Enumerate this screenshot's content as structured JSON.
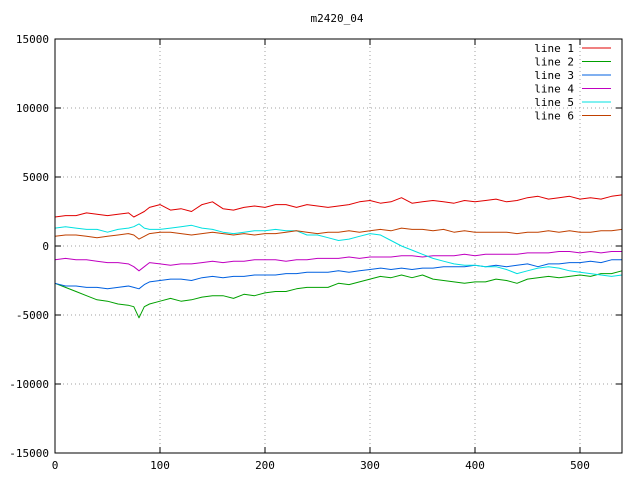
{
  "chart_data": {
    "type": "line",
    "title": "m2420_04",
    "xlabel": "",
    "ylabel": "",
    "xlim": [
      0,
      540
    ],
    "ylim": [
      -15000,
      15000
    ],
    "x_ticks": [
      0,
      100,
      200,
      300,
      400,
      500
    ],
    "y_ticks": [
      -15000,
      -10000,
      -5000,
      0,
      5000,
      10000,
      15000
    ],
    "grid": true,
    "legend_position": "top-right",
    "x": [
      0,
      10,
      20,
      30,
      40,
      50,
      60,
      70,
      75,
      80,
      85,
      90,
      100,
      110,
      120,
      130,
      140,
      150,
      160,
      170,
      180,
      190,
      200,
      210,
      220,
      230,
      240,
      250,
      260,
      270,
      280,
      290,
      300,
      310,
      320,
      330,
      340,
      350,
      360,
      370,
      380,
      390,
      400,
      410,
      420,
      430,
      440,
      450,
      460,
      470,
      480,
      490,
      500,
      510,
      520,
      530,
      540
    ],
    "series": [
      {
        "name": "line 1",
        "color": "#e00000",
        "values": [
          2100,
          2200,
          2200,
          2400,
          2300,
          2200,
          2300,
          2400,
          2100,
          2300,
          2500,
          2800,
          3000,
          2600,
          2700,
          2500,
          3000,
          3200,
          2700,
          2600,
          2800,
          2900,
          2800,
          3000,
          3000,
          2800,
          3000,
          2900,
          2800,
          2900,
          3000,
          3200,
          3300,
          3100,
          3200,
          3500,
          3100,
          3200,
          3300,
          3200,
          3100,
          3300,
          3200,
          3300,
          3400,
          3200,
          3300,
          3500,
          3600,
          3400,
          3500,
          3600,
          3400,
          3500,
          3400,
          3600,
          3700
        ]
      },
      {
        "name": "line 2",
        "color": "#00a000",
        "values": [
          -2700,
          -3000,
          -3300,
          -3600,
          -3900,
          -4000,
          -4200,
          -4300,
          -4400,
          -5200,
          -4400,
          -4200,
          -4000,
          -3800,
          -4000,
          -3900,
          -3700,
          -3600,
          -3600,
          -3800,
          -3500,
          -3600,
          -3400,
          -3300,
          -3300,
          -3100,
          -3000,
          -3000,
          -3000,
          -2700,
          -2800,
          -2600,
          -2400,
          -2200,
          -2300,
          -2100,
          -2300,
          -2100,
          -2400,
          -2500,
          -2600,
          -2700,
          -2600,
          -2600,
          -2400,
          -2500,
          -2700,
          -2400,
          -2300,
          -2200,
          -2300,
          -2200,
          -2100,
          -2200,
          -2000,
          -2000,
          -1800
        ]
      },
      {
        "name": "line 3",
        "color": "#0060e0",
        "values": [
          -2700,
          -2900,
          -2900,
          -3000,
          -3000,
          -3100,
          -3000,
          -2900,
          -3000,
          -3100,
          -2800,
          -2600,
          -2500,
          -2400,
          -2400,
          -2500,
          -2300,
          -2200,
          -2300,
          -2200,
          -2200,
          -2100,
          -2100,
          -2100,
          -2000,
          -2000,
          -1900,
          -1900,
          -1900,
          -1800,
          -1900,
          -1800,
          -1700,
          -1600,
          -1700,
          -1600,
          -1700,
          -1600,
          -1600,
          -1500,
          -1500,
          -1500,
          -1400,
          -1500,
          -1400,
          -1500,
          -1400,
          -1300,
          -1500,
          -1300,
          -1300,
          -1200,
          -1200,
          -1100,
          -1200,
          -1000,
          -1000
        ]
      },
      {
        "name": "line 4",
        "color": "#c000c0",
        "values": [
          -1000,
          -900,
          -1000,
          -1000,
          -1100,
          -1200,
          -1200,
          -1300,
          -1500,
          -1800,
          -1500,
          -1200,
          -1300,
          -1400,
          -1300,
          -1300,
          -1200,
          -1100,
          -1200,
          -1100,
          -1100,
          -1000,
          -1000,
          -1000,
          -1100,
          -1000,
          -1000,
          -900,
          -900,
          -900,
          -800,
          -900,
          -800,
          -800,
          -800,
          -700,
          -700,
          -800,
          -700,
          -700,
          -700,
          -600,
          -700,
          -600,
          -600,
          -600,
          -600,
          -500,
          -500,
          -500,
          -400,
          -400,
          -500,
          -400,
          -500,
          -400,
          -400
        ]
      },
      {
        "name": "line 5",
        "color": "#00e0e0",
        "values": [
          1300,
          1400,
          1300,
          1200,
          1200,
          1000,
          1200,
          1300,
          1400,
          1600,
          1300,
          1200,
          1200,
          1300,
          1400,
          1500,
          1300,
          1200,
          1000,
          900,
          1000,
          1100,
          1100,
          1200,
          1100,
          1100,
          800,
          800,
          600,
          400,
          500,
          700,
          900,
          800,
          400,
          0,
          -300,
          -600,
          -900,
          -1100,
          -1300,
          -1400,
          -1400,
          -1500,
          -1500,
          -1700,
          -2000,
          -1800,
          -1600,
          -1500,
          -1600,
          -1800,
          -1900,
          -2000,
          -2100,
          -2200,
          -2100
        ]
      },
      {
        "name": "line 6",
        "color": "#c04000",
        "values": [
          700,
          800,
          800,
          700,
          600,
          700,
          800,
          900,
          800,
          500,
          700,
          900,
          1000,
          1000,
          900,
          800,
          900,
          1000,
          900,
          800,
          900,
          800,
          900,
          900,
          1000,
          1100,
          1000,
          900,
          1000,
          1000,
          1100,
          1000,
          1100,
          1200,
          1100,
          1300,
          1200,
          1200,
          1100,
          1200,
          1000,
          1100,
          1000,
          1000,
          1000,
          1000,
          900,
          1000,
          1000,
          1100,
          1000,
          1100,
          1000,
          1000,
          1100,
          1100,
          1200
        ]
      }
    ]
  }
}
